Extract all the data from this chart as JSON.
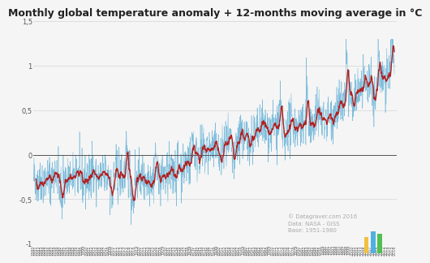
{
  "title": "Monthly global temperature anomaly + 12-months moving average in °C",
  "xlim": [
    1880,
    2017
  ],
  "ylim": [
    -1.0,
    1.5
  ],
  "yticks": [
    -1.0,
    -0.5,
    0,
    0.5,
    1.0,
    1.5
  ],
  "ytick_labels": [
    "-1",
    "-0,5",
    "0",
    "0,5",
    "1",
    "1,5"
  ],
  "bg_color": "#f5f5f5",
  "monthly_color": "#6ab4d8",
  "moving_avg_color": "#b22222",
  "zero_line_color": "#555555",
  "grid_color": "#cccccc",
  "annotation": "© Datagraver.com 2016\nData: NASA - GISS\nBase: 1951-1980",
  "annotation_color": "#aaaaaa",
  "title_fontsize": 9,
  "tick_fontsize": 6,
  "seed": 42
}
